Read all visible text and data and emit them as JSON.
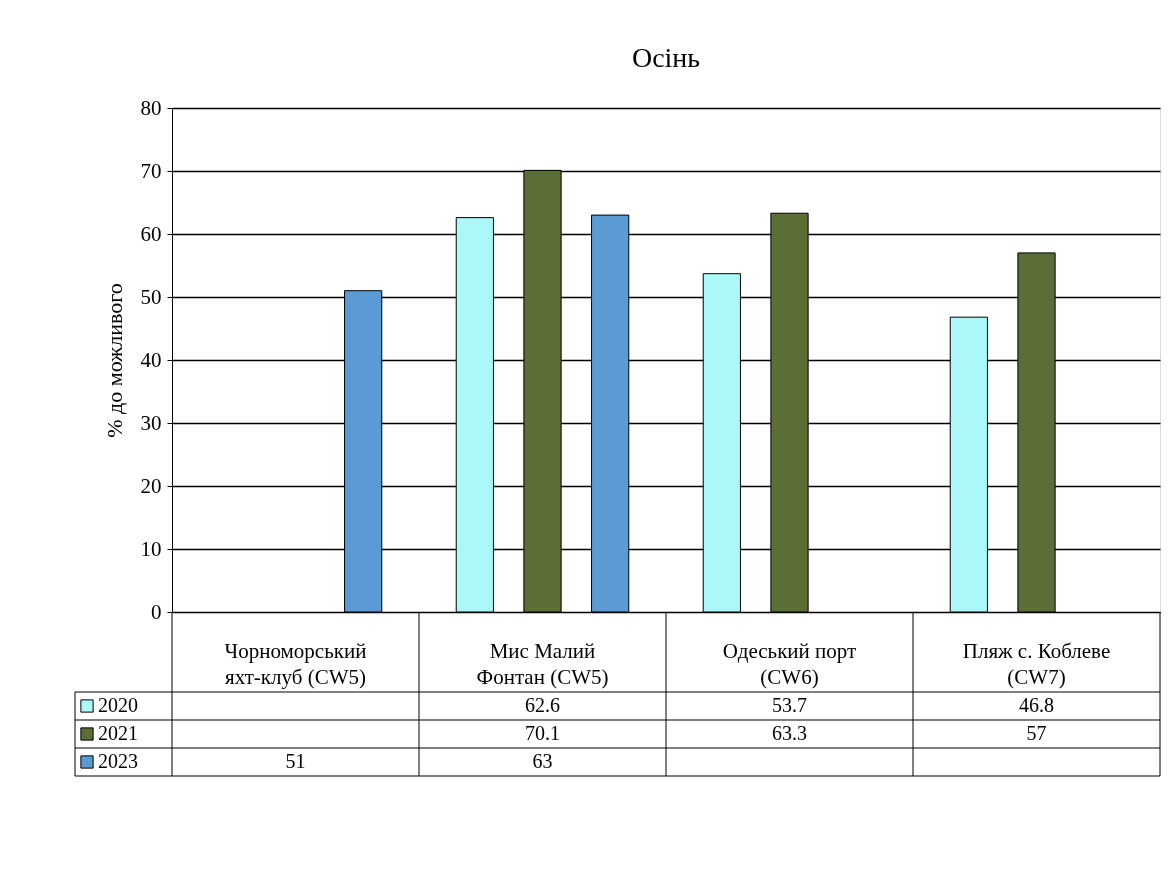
{
  "chart_data": {
    "type": "bar",
    "title": "Осінь",
    "ylabel": "% до можливого",
    "categories": [
      "Чорноморський яхт-клуб (CW5)",
      "Мис Малий Фонтан (CW5)",
      "Одеський порт (CW6)",
      "Пляж с. Коблеве (CW7)"
    ],
    "series": [
      {
        "name": "2020",
        "color": "#aaf8f8",
        "values": [
          null,
          62.6,
          53.7,
          46.8
        ]
      },
      {
        "name": "2021",
        "color": "#5a6e35",
        "values": [
          null,
          70.1,
          63.3,
          57
        ]
      },
      {
        "name": "2023",
        "color": "#5b9bd5",
        "values": [
          51,
          63,
          null,
          null
        ]
      }
    ],
    "ylim": [
      0,
      80
    ],
    "yticks": [
      0,
      10,
      20,
      30,
      40,
      50,
      60,
      70,
      80
    ],
    "grid": "y",
    "legend": "bottom",
    "data_labels": true
  }
}
